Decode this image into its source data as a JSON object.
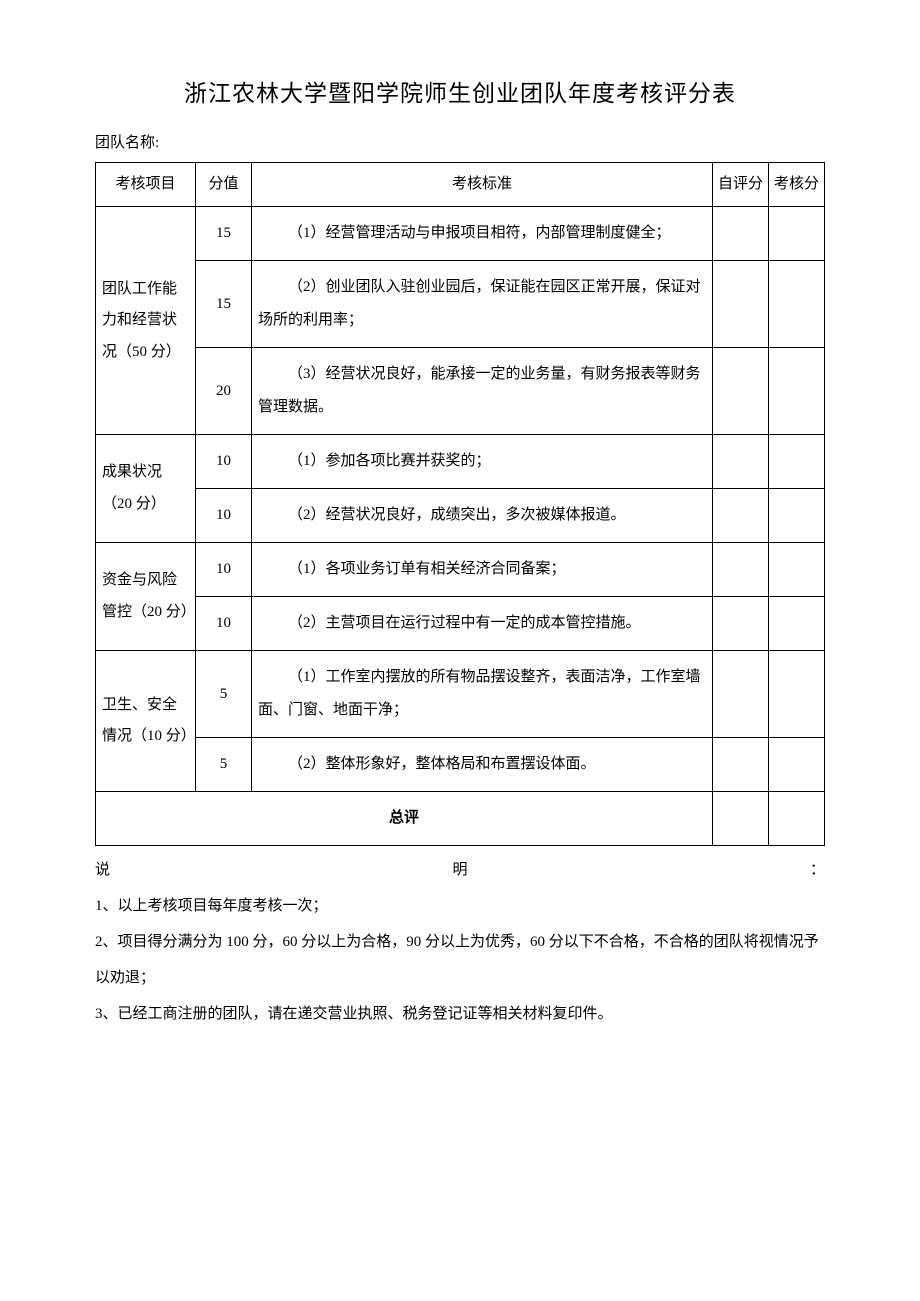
{
  "title": "浙江农林大学暨阳学院师生创业团队年度考核评分表",
  "team_label": "团队名称:",
  "table": {
    "headers": {
      "category": "考核项目",
      "score": "分值",
      "criteria": "考核标准",
      "self": "自评分",
      "eval": "考核分"
    },
    "sections": [
      {
        "category": "团队工作能力和经营状况（50 分）",
        "rows": [
          {
            "score": "15",
            "criteria": "（1）经营管理活动与申报项目相符，内部管理制度健全；"
          },
          {
            "score": "15",
            "criteria": "（2）创业团队入驻创业园后，保证能在园区正常开展，保证对场所的利用率；"
          },
          {
            "score": "20",
            "criteria": "（3）经营状况良好，能承接一定的业务量，有财务报表等财务管理数据。"
          }
        ]
      },
      {
        "category": "成果状况（20 分）",
        "rows": [
          {
            "score": "10",
            "criteria": "（1）参加各项比赛并获奖的；"
          },
          {
            "score": "10",
            "criteria": "（2）经营状况良好，成绩突出，多次被媒体报道。"
          }
        ]
      },
      {
        "category": "资金与风险管控（20 分）",
        "rows": [
          {
            "score": "10",
            "criteria": "（1）各项业务订单有相关经济合同备案；"
          },
          {
            "score": "10",
            "criteria": "（2）主营项目在运行过程中有一定的成本管控措施。"
          }
        ]
      },
      {
        "category": "卫生、安全情况（10 分）",
        "rows": [
          {
            "score": "5",
            "criteria": "（1）工作室内摆放的所有物品摆设整齐，表面洁净，工作室墙面、门窗、地面干净；"
          },
          {
            "score": "5",
            "criteria": "（2）整体形象好，整体格局和布置摆设体面。"
          }
        ]
      }
    ],
    "total_label": "总评"
  },
  "notes": {
    "header_left": "说",
    "header_mid": "明",
    "header_right": "：",
    "items": [
      "1、以上考核项目每年度考核一次；",
      "2、项目得分满分为 100 分，60 分以上为合格，90 分以上为优秀，60 分以下不合格，不合格的团队将视情况予以劝退；",
      "3、已经工商注册的团队，请在递交营业执照、税务登记证等相关材料复印件。"
    ]
  }
}
